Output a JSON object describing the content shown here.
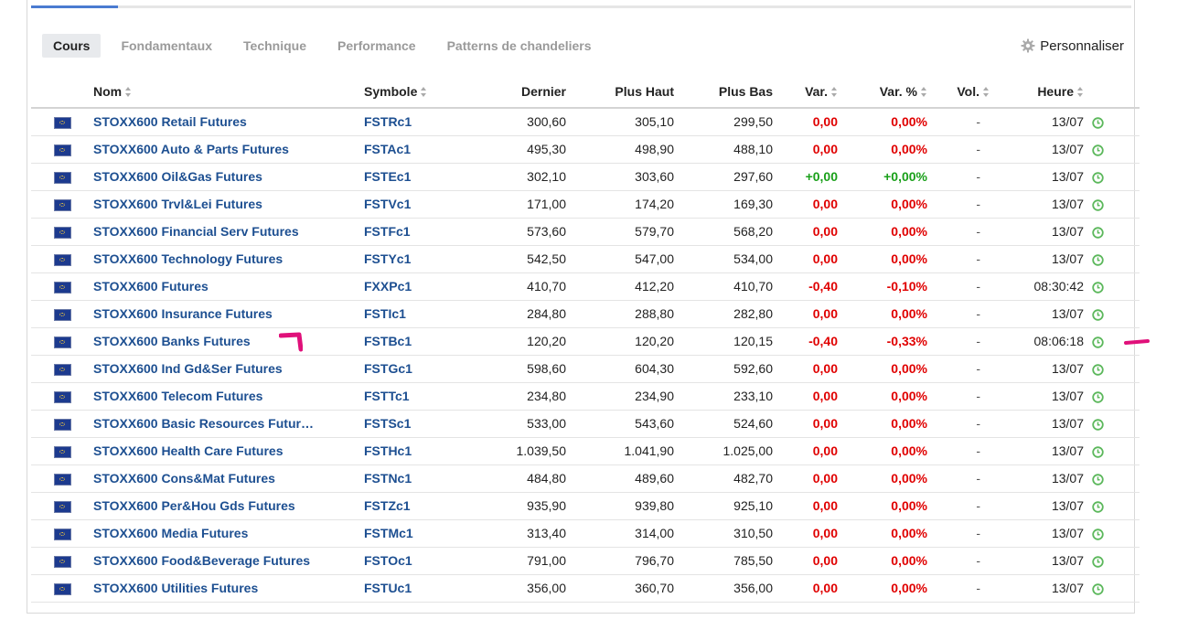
{
  "tabs": [
    {
      "label": "Cours",
      "active": true
    },
    {
      "label": "Fondamentaux",
      "active": false
    },
    {
      "label": "Technique",
      "active": false
    },
    {
      "label": "Performance",
      "active": false
    },
    {
      "label": "Patterns de chandeliers",
      "active": false
    }
  ],
  "customize_label": "Personnaliser",
  "columns": {
    "name": "Nom",
    "symbol": "Symbole",
    "last": "Dernier",
    "high": "Plus Haut",
    "low": "Plus Bas",
    "chg": "Var.",
    "chg_pct": "Var. %",
    "vol": "Vol.",
    "time": "Heure"
  },
  "colors": {
    "negative": "#e00000",
    "positive": "#1aa01a",
    "link": "#1d4f91",
    "clock": "#5cb85c",
    "annotation": "#e0107a"
  },
  "rows": [
    {
      "name": "STOXX600 Retail Futures",
      "symbol": "FSTRc1",
      "last": "300,60",
      "high": "305,10",
      "low": "299,50",
      "chg": "0,00",
      "chg_pct": "0,00%",
      "vol": "-",
      "time": "13/07",
      "dir": "neg"
    },
    {
      "name": "STOXX600 Auto & Parts Futures",
      "symbol": "FSTAc1",
      "last": "495,30",
      "high": "498,90",
      "low": "488,10",
      "chg": "0,00",
      "chg_pct": "0,00%",
      "vol": "-",
      "time": "13/07",
      "dir": "neg"
    },
    {
      "name": "STOXX600 Oil&Gas Futures",
      "symbol": "FSTEc1",
      "last": "302,10",
      "high": "303,60",
      "low": "297,60",
      "chg": "+0,00",
      "chg_pct": "+0,00%",
      "vol": "-",
      "time": "13/07",
      "dir": "pos"
    },
    {
      "name": "STOXX600 Trvl&Lei Futures",
      "symbol": "FSTVc1",
      "last": "171,00",
      "high": "174,20",
      "low": "169,30",
      "chg": "0,00",
      "chg_pct": "0,00%",
      "vol": "-",
      "time": "13/07",
      "dir": "neg"
    },
    {
      "name": "STOXX600 Financial Serv Futures",
      "symbol": "FSTFc1",
      "last": "573,60",
      "high": "579,70",
      "low": "568,20",
      "chg": "0,00",
      "chg_pct": "0,00%",
      "vol": "-",
      "time": "13/07",
      "dir": "neg"
    },
    {
      "name": "STOXX600 Technology Futures",
      "symbol": "FSTYc1",
      "last": "542,50",
      "high": "547,00",
      "low": "534,00",
      "chg": "0,00",
      "chg_pct": "0,00%",
      "vol": "-",
      "time": "13/07",
      "dir": "neg"
    },
    {
      "name": "STOXX600 Futures",
      "symbol": "FXXPc1",
      "last": "410,70",
      "high": "412,20",
      "low": "410,70",
      "chg": "-0,40",
      "chg_pct": "-0,10%",
      "vol": "-",
      "time": "08:30:42",
      "dir": "neg"
    },
    {
      "name": "STOXX600 Insurance Futures",
      "symbol": "FSTIc1",
      "last": "284,80",
      "high": "288,80",
      "low": "282,80",
      "chg": "0,00",
      "chg_pct": "0,00%",
      "vol": "-",
      "time": "13/07",
      "dir": "neg"
    },
    {
      "name": "STOXX600 Banks Futures",
      "symbol": "FSTBc1",
      "last": "120,20",
      "high": "120,20",
      "low": "120,15",
      "chg": "-0,40",
      "chg_pct": "-0,33%",
      "vol": "-",
      "time": "08:06:18",
      "dir": "neg"
    },
    {
      "name": "STOXX600 Ind Gd&Ser Futures",
      "symbol": "FSTGc1",
      "last": "598,60",
      "high": "604,30",
      "low": "592,60",
      "chg": "0,00",
      "chg_pct": "0,00%",
      "vol": "-",
      "time": "13/07",
      "dir": "neg"
    },
    {
      "name": "STOXX600 Telecom Futures",
      "symbol": "FSTTc1",
      "last": "234,80",
      "high": "234,90",
      "low": "233,10",
      "chg": "0,00",
      "chg_pct": "0,00%",
      "vol": "-",
      "time": "13/07",
      "dir": "neg"
    },
    {
      "name": "STOXX600 Basic Resources Futur…",
      "symbol": "FSTSc1",
      "last": "533,00",
      "high": "543,60",
      "low": "524,60",
      "chg": "0,00",
      "chg_pct": "0,00%",
      "vol": "-",
      "time": "13/07",
      "dir": "neg"
    },
    {
      "name": "STOXX600 Health Care Futures",
      "symbol": "FSTHc1",
      "last": "1.039,50",
      "high": "1.041,90",
      "low": "1.025,00",
      "chg": "0,00",
      "chg_pct": "0,00%",
      "vol": "-",
      "time": "13/07",
      "dir": "neg"
    },
    {
      "name": "STOXX600 Cons&Mat Futures",
      "symbol": "FSTNc1",
      "last": "484,80",
      "high": "489,60",
      "low": "482,70",
      "chg": "0,00",
      "chg_pct": "0,00%",
      "vol": "-",
      "time": "13/07",
      "dir": "neg"
    },
    {
      "name": "STOXX600 Per&Hou Gds Futures",
      "symbol": "FSTZc1",
      "last": "935,90",
      "high": "939,80",
      "low": "925,10",
      "chg": "0,00",
      "chg_pct": "0,00%",
      "vol": "-",
      "time": "13/07",
      "dir": "neg"
    },
    {
      "name": "STOXX600 Media Futures",
      "symbol": "FSTMc1",
      "last": "313,40",
      "high": "314,00",
      "low": "310,50",
      "chg": "0,00",
      "chg_pct": "0,00%",
      "vol": "-",
      "time": "13/07",
      "dir": "neg"
    },
    {
      "name": "STOXX600 Food&Beverage Futures",
      "symbol": "FSTOc1",
      "last": "791,00",
      "high": "796,70",
      "low": "785,50",
      "chg": "0,00",
      "chg_pct": "0,00%",
      "vol": "-",
      "time": "13/07",
      "dir": "neg"
    },
    {
      "name": "STOXX600 Utilities Futures",
      "symbol": "FSTUc1",
      "last": "356,00",
      "high": "360,70",
      "low": "356,00",
      "chg": "0,00",
      "chg_pct": "0,00%",
      "vol": "-",
      "time": "13/07",
      "dir": "neg"
    }
  ]
}
